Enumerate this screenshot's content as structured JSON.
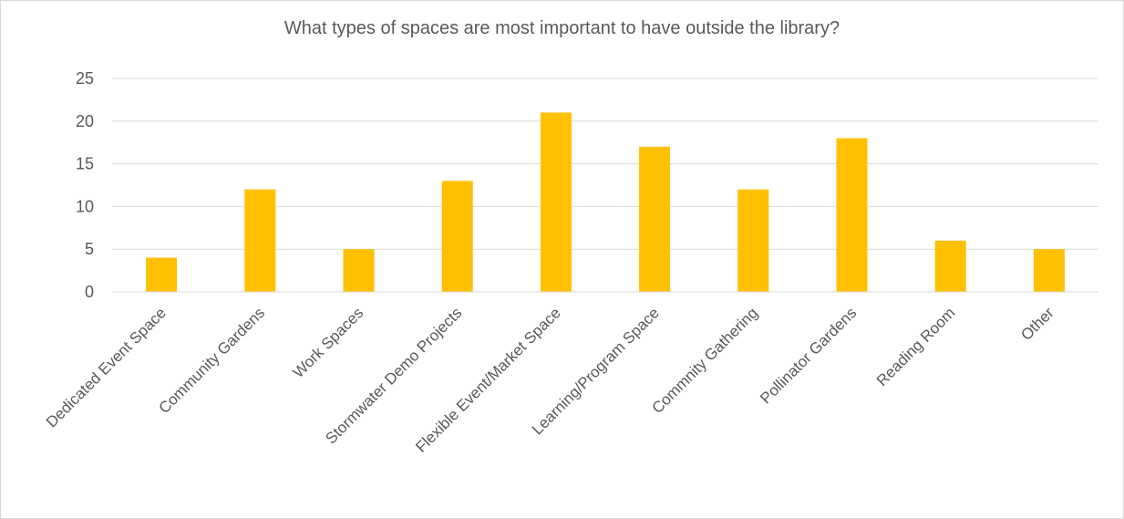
{
  "chart_data": {
    "type": "bar",
    "title": "What types of spaces are most important to have outside the library?",
    "xlabel": "",
    "ylabel": "",
    "categories": [
      "Dedicated Event Space",
      "Community Gardens",
      "Work Spaces",
      "Stormwater Demo Projects",
      "Flexible Event/Market Space",
      "Learning/Program Space",
      "Commnity Gathering",
      "Pollinator Gardens",
      "Reading Room",
      "Other"
    ],
    "values": [
      4,
      12,
      5,
      13,
      21,
      17,
      12,
      18,
      6,
      5
    ],
    "ylim": [
      0,
      25
    ],
    "yticks": [
      0,
      5,
      10,
      15,
      20,
      25
    ],
    "grid": true,
    "legend": "none",
    "bar_color": "#FFC000",
    "grid_color": "#d9d9d9",
    "text_color": "#595959"
  }
}
